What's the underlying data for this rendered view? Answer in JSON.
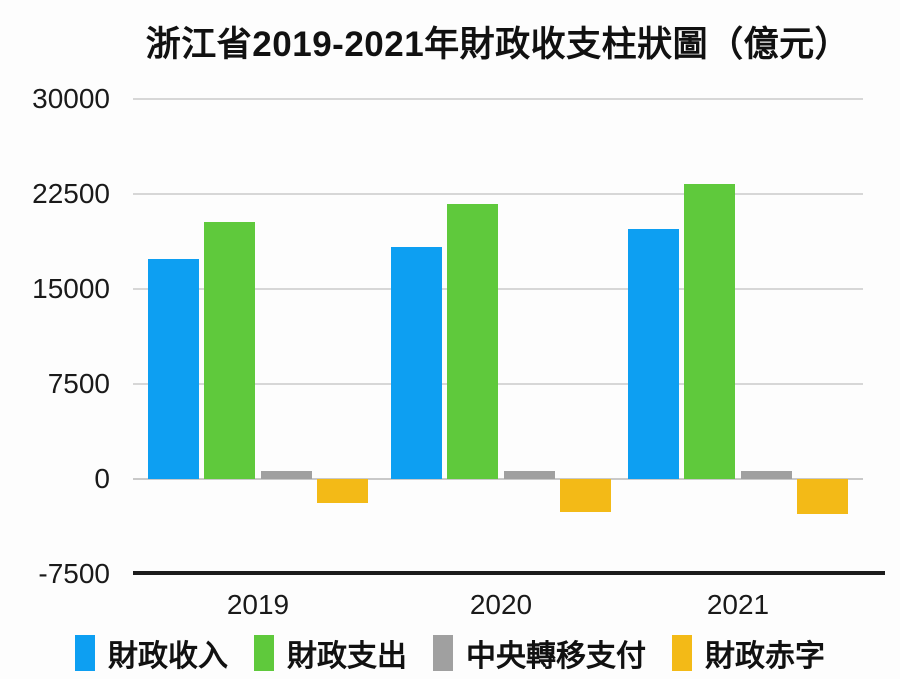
{
  "title": "浙江省2019-2021年財政收支柱狀圖（億元）",
  "chart_data": {
    "type": "bar",
    "title": "浙江省2019-2021年財政收支柱狀圖（億元）",
    "categories": [
      "2019",
      "2020",
      "2021"
    ],
    "series": [
      {
        "name": "財政收入",
        "color": "#0d9ff2",
        "values": [
          17400,
          18300,
          19700
        ]
      },
      {
        "name": "財政支出",
        "color": "#5fc93c",
        "values": [
          20300,
          21700,
          23300
        ]
      },
      {
        "name": "中央轉移支付",
        "color": "#a0a0a0",
        "values": [
          600,
          650,
          650
        ]
      },
      {
        "name": "財政赤字",
        "color": "#f3ba17",
        "values": [
          -1900,
          -2600,
          -2800
        ]
      }
    ],
    "y_ticks": [
      30000,
      22500,
      15000,
      7500,
      0,
      -7500
    ],
    "ylim": [
      -7500,
      30000
    ],
    "grid": "horizontal",
    "legend_position": "bottom",
    "axis_colors": {
      "grid": "#d7d7d7",
      "zero_line": "#c9c9c9",
      "baseline": "#1c1c1c",
      "text": "#1a1a1a"
    }
  }
}
